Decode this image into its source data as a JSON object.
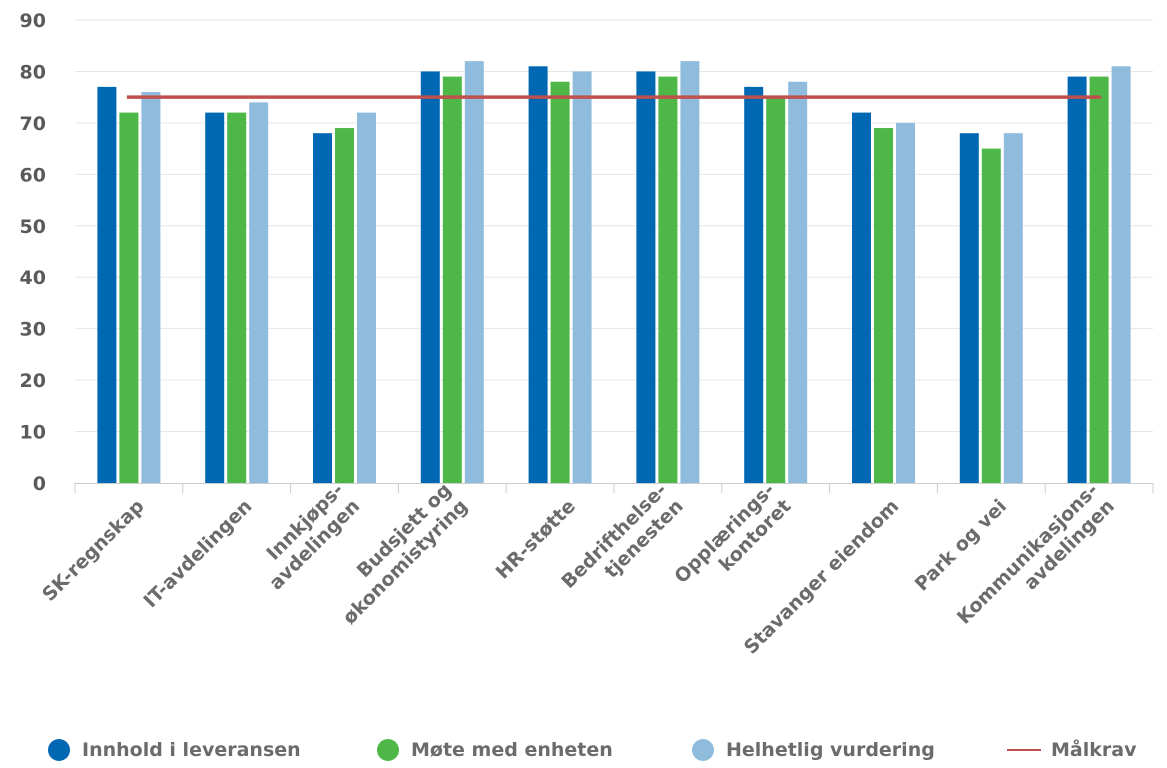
{
  "chart_data": {
    "type": "bar",
    "categories": [
      [
        "SK-regnskap"
      ],
      [
        "IT-avdelingen"
      ],
      [
        "Innkjøps-",
        "avdelingen"
      ],
      [
        "Budsjett og",
        "økonomistyring"
      ],
      [
        "HR-støtte"
      ],
      [
        "Bedrifthelse-",
        "tjenesten"
      ],
      [
        "Opplærings-",
        "kontoret"
      ],
      [
        "Stavanger eiendom"
      ],
      [
        "Park og vei"
      ],
      [
        "Kommunikasjons-",
        "avdelingen"
      ]
    ],
    "series": [
      {
        "name": "Innhold i leveransen",
        "color": "#0068b3",
        "values": [
          77,
          72,
          68,
          80,
          81,
          80,
          77,
          72,
          68,
          79
        ]
      },
      {
        "name": "Møte med enheten",
        "color": "#4db848",
        "values": [
          72,
          72,
          69,
          79,
          78,
          79,
          75,
          69,
          65,
          79
        ]
      },
      {
        "name": "Helhetlig vurdering",
        "color": "#8fbcdd",
        "values": [
          76,
          74,
          72,
          82,
          80,
          82,
          78,
          70,
          68,
          81
        ]
      }
    ],
    "target_line": {
      "name": "Målkrav",
      "value": 75,
      "color": "#c0504d"
    },
    "y_ticks": [
      "0",
      "10",
      "20",
      "30",
      "40",
      "50",
      "60",
      "70",
      "80",
      "90"
    ],
    "ylim": [
      0,
      90
    ],
    "grid": true,
    "legend_position": "bottom"
  }
}
